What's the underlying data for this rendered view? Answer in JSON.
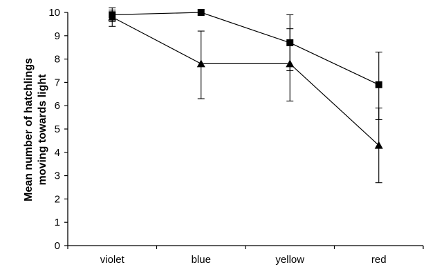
{
  "chart_data": {
    "type": "line",
    "title": "",
    "xlabel": "",
    "ylabel_lines": [
      "Mean number of hatchlings",
      "moving towards light"
    ],
    "categories": [
      "violet",
      "blue",
      "yellow",
      "red"
    ],
    "ylim": [
      0,
      10
    ],
    "yticks": [
      0,
      1,
      2,
      3,
      4,
      5,
      6,
      7,
      8,
      9,
      10
    ],
    "grid": false,
    "legend": "none",
    "series": [
      {
        "marker": "square",
        "values": [
          9.9,
          10.0,
          8.7,
          6.9
        ],
        "error_low": [
          9.6,
          null,
          7.5,
          5.4
        ],
        "error_high": [
          10.2,
          null,
          9.9,
          8.3
        ]
      },
      {
        "marker": "triangle",
        "values": [
          9.8,
          7.8,
          7.8,
          4.3
        ],
        "error_low": [
          9.4,
          6.3,
          6.2,
          2.7
        ],
        "error_high": [
          10.1,
          9.2,
          9.3,
          5.9
        ]
      }
    ],
    "color": "#000000"
  }
}
